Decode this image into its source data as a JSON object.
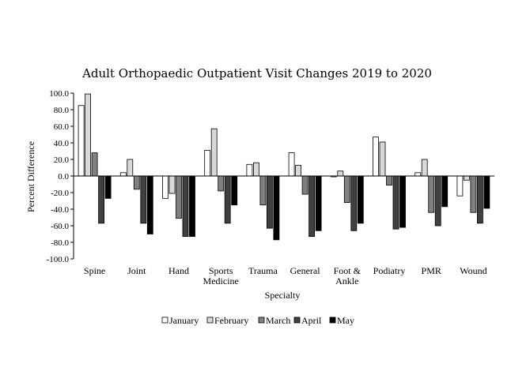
{
  "chart_data": {
    "type": "bar",
    "title": "Adult Orthopaedic Outpatient Visit Changes 2019 to 2020",
    "xlabel": "Specialty",
    "ylabel": "Percent Difference",
    "ylim": [
      -100,
      100
    ],
    "yticks": [
      "100.0",
      "80.0",
      "60.0",
      "40.0",
      "20.0",
      "0.0",
      "-20.0",
      "-40.0",
      "-60.0",
      "-80.0",
      "-100.0"
    ],
    "categories": [
      "Spine",
      "Joint",
      "Hand",
      "Sports Medicine",
      "Trauma",
      "General",
      "Foot & Ankle",
      "Podiatry",
      "PMR",
      "Wound"
    ],
    "legend_position": "bottom",
    "grid": false,
    "series": [
      {
        "name": "January",
        "color": "#ffffff",
        "values": [
          85,
          4,
          -27,
          31,
          14,
          28,
          -1,
          47,
          4,
          -24
        ]
      },
      {
        "name": "February",
        "color": "#d9d9d9",
        "values": [
          99,
          20,
          -21,
          57,
          16,
          13,
          6,
          41,
          20,
          -5
        ]
      },
      {
        "name": "March",
        "color": "#808080",
        "values": [
          28,
          -16,
          -51,
          -18,
          -35,
          -22,
          -32,
          -11,
          -44,
          -44
        ]
      },
      {
        "name": "April",
        "color": "#404040",
        "values": [
          -57,
          -57,
          -73,
          -57,
          -63,
          -73,
          -66,
          -64,
          -60,
          -57
        ]
      },
      {
        "name": "May",
        "color": "#000000",
        "values": [
          -27,
          -70,
          -73,
          -35,
          -77,
          -66,
          -57,
          -62,
          -37,
          -39
        ]
      }
    ]
  }
}
